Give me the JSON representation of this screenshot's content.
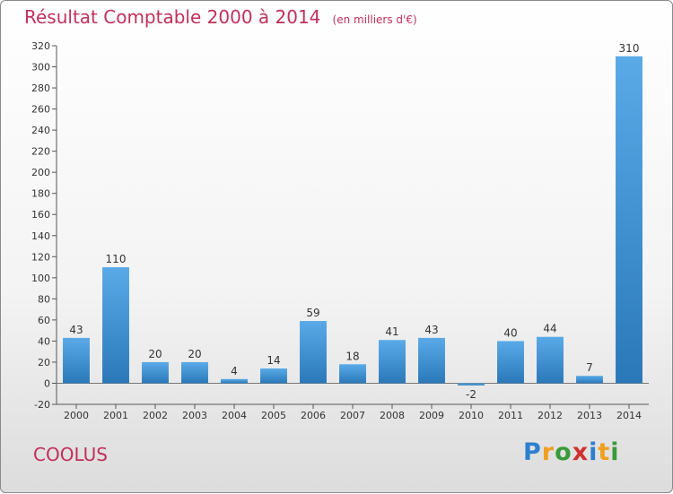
{
  "title": "Résultat Comptable 2000 à 2014",
  "subtitle": "(en milliers d'€)",
  "commune": "COOLUS",
  "logo_text": "Proxiti",
  "colors": {
    "title": "#c0305a",
    "bar_light": "#5aaae8",
    "bar_dark": "#2a78b8"
  },
  "chart_data": {
    "type": "bar",
    "title": "Résultat Comptable 2000 à 2014",
    "subtitle": "(en milliers d'€)",
    "categories": [
      "2000",
      "2001",
      "2002",
      "2003",
      "2004",
      "2005",
      "2006",
      "2007",
      "2008",
      "2009",
      "2010",
      "2011",
      "2012",
      "2013",
      "2014"
    ],
    "values": [
      43,
      110,
      20,
      20,
      4,
      14,
      59,
      18,
      41,
      43,
      -2,
      40,
      44,
      7,
      310
    ],
    "ylim": [
      -20,
      320
    ],
    "yticks": [
      -20,
      0,
      20,
      40,
      60,
      80,
      100,
      120,
      140,
      160,
      180,
      200,
      220,
      240,
      260,
      280,
      300,
      320
    ],
    "grid": false,
    "legend": "none"
  }
}
